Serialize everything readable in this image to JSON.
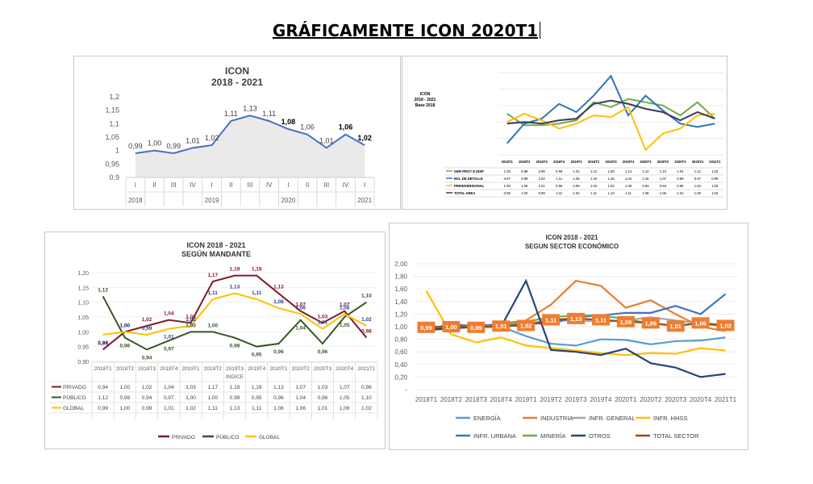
{
  "page": {
    "title": "GRÁFICAMENTE ICON 2020T1"
  },
  "chart_data": [
    {
      "id": "p1",
      "type": "line",
      "title": "ICON",
      "subtitle": "2018 - 2021",
      "xlabel": "",
      "ylabel": "",
      "ylim": [
        0.9,
        1.2
      ],
      "yticks": [
        "0,9",
        "0,95",
        "1",
        "1,05",
        "1,1",
        "1,15",
        "1,2"
      ],
      "categories": [
        "I",
        "II",
        "III",
        "IV",
        "I",
        "II",
        "III",
        "IV",
        "I",
        "II",
        "III",
        "IV",
        "I"
      ],
      "years": [
        "2018",
        "2019",
        "2020",
        "2021"
      ],
      "values": [
        0.99,
        1.0,
        0.99,
        1.01,
        1.02,
        1.11,
        1.13,
        1.11,
        1.08,
        1.06,
        1.01,
        1.06,
        1.02
      ],
      "labels": [
        "0,99",
        "1,00",
        "0,99",
        "1,01",
        "1,02",
        "1,11",
        "1,13",
        "1,11",
        "1,08",
        "1,06",
        "1,01",
        "1,06",
        "1,02"
      ],
      "bold_labels": [
        8,
        11,
        12
      ],
      "color": "#4472c4",
      "area_color": "#d9d9d9"
    },
    {
      "id": "p2",
      "type": "line",
      "title": "ICON",
      "subtitle": "2018 - 2021",
      "subtitle2": "Base 2018",
      "ylim": [
        0.8,
        1.3
      ],
      "categories": [
        "2018T1",
        "2018T2",
        "2018T3",
        "2018T4",
        "2019T1",
        "2019T2",
        "2019T3",
        "2019T4",
        "2020T1",
        "2020T2",
        "2020T3",
        "2020T4",
        "2021T1"
      ],
      "series": [
        {
          "name": "GER PROY E INSP",
          "color": "#70ad47",
          "values": [
            1.05,
            0.98,
            0.98,
            0.99,
            1.01,
            1.12,
            1.09,
            1.14,
            1.12,
            1.1,
            1.04,
            1.12,
            1.02
          ],
          "labels": [
            "1.05",
            "0.98",
            "0.98",
            "0.99",
            "1.01",
            "1.12",
            "1.09",
            "1.14",
            "1.12",
            "1.10",
            "1.04",
            "1.12",
            "1.02"
          ]
        },
        {
          "name": "ING. DE DETALLE",
          "color": "#2e75b6",
          "values": [
            0.87,
            0.99,
            1.02,
            1.11,
            1.06,
            1.16,
            1.28,
            1.04,
            1.16,
            1.07,
            0.99,
            0.97,
            0.99
          ],
          "labels": [
            "0.87",
            "0.99",
            "1.02",
            "1.11",
            "1.06",
            "1.16",
            "1.28",
            "1.04",
            "1.16",
            "1.07",
            "0.99",
            "0.97",
            "0.99"
          ]
        },
        {
          "name": "PREINVERSIONAL",
          "color": "#ffc000",
          "values": [
            1.0,
            1.05,
            1.01,
            0.96,
            0.99,
            1.04,
            1.03,
            1.09,
            0.83,
            0.93,
            0.96,
            1.04,
            1.05
          ],
          "labels": [
            "1.00",
            "1.05",
            "1.01",
            "0.96",
            "0.99",
            "1.04",
            "1.03",
            "1.09",
            "0.83",
            "0.93",
            "0.96",
            "1.04",
            "1.05"
          ]
        },
        {
          "name": "TOTAL AREA",
          "color": "#3a3a5c",
          "values": [
            0.99,
            1.0,
            0.99,
            1.01,
            1.02,
            1.11,
            1.13,
            1.11,
            1.08,
            1.06,
            1.01,
            1.06,
            1.02
          ],
          "labels": [
            "0.99",
            "1.00",
            "0.99",
            "1.01",
            "1.02",
            "1.11",
            "1.13",
            "1.11",
            "1.08",
            "1.06",
            "1.01",
            "1.06",
            "1.02"
          ]
        }
      ]
    },
    {
      "id": "p3",
      "type": "line",
      "title": "ICON 2018 - 2021",
      "subtitle": "SEGÚN MANDANTE",
      "xlabel": "INDICE",
      "ylim": [
        0.9,
        1.2
      ],
      "yticks": [
        "0,90",
        "0,95",
        "1,00",
        "1,05",
        "1,10",
        "1,15",
        "1,20"
      ],
      "categories": [
        "2018T1",
        "2018T2",
        "2018T3",
        "2018T4",
        "2019T1",
        "2019T2",
        "2019T3",
        "2019T4",
        "2020T1",
        "2020T2",
        "2020T3",
        "2020T4",
        "2021T1"
      ],
      "series": [
        {
          "name": "PRIVADO",
          "color": "#7b1e2b",
          "values": [
            0.94,
            1.0,
            1.02,
            1.04,
            1.03,
            1.17,
            1.19,
            1.19,
            1.13,
            1.07,
            1.03,
            1.07,
            0.98
          ],
          "labels": [
            "0,94",
            "1,00",
            "1,02",
            "1,04",
            "1,03",
            "1,17",
            "1,19",
            "1,19",
            "1,13",
            "1,07",
            "1,03",
            "1,07",
            "0,98"
          ]
        },
        {
          "name": "PÚBLICO",
          "color": "#375623",
          "values": [
            1.12,
            0.98,
            0.94,
            0.97,
            1.0,
            1.0,
            0.98,
            0.95,
            0.96,
            1.04,
            0.96,
            1.05,
            1.1
          ],
          "labels": [
            "1,12",
            "0,98",
            "0,94",
            "0,97",
            "1,00",
            "1,00",
            "0,98",
            "0,95",
            "0,96",
            "1,04",
            "0,96",
            "1,05",
            "1,10"
          ]
        },
        {
          "name": "GLOBAL",
          "color": "#ffc000",
          "values": [
            0.99,
            1.0,
            0.99,
            1.01,
            1.02,
            1.11,
            1.13,
            1.11,
            1.08,
            1.06,
            1.01,
            1.06,
            1.02
          ],
          "labels": [
            "0,99",
            "1,00",
            "0,99",
            "1,01",
            "1,02",
            "1,11",
            "1,13",
            "1,11",
            "1,08",
            "1,06",
            "1,01",
            "1,06",
            "1,02"
          ]
        }
      ]
    },
    {
      "id": "p4",
      "type": "line",
      "title": "ICON 2018 - 2021",
      "subtitle": "SEGUN SECTOR ECONÓMICO",
      "ylim": [
        0,
        2.0
      ],
      "yticks": [
        "-",
        "0,20",
        "0,40",
        "0,60",
        "0,80",
        "1,00",
        "1,20",
        "1,40",
        "1,60",
        "1,80",
        "2,00"
      ],
      "categories": [
        "2018T1",
        "2018T2",
        "2018T3",
        "2018T4",
        "2019T1",
        "2019T2",
        "2019T3",
        "2019T4",
        "2020T1",
        "2020T2",
        "2020T3",
        "2020T4",
        "2021T1"
      ],
      "series": [
        {
          "name": "ENERGÍA",
          "color": "#5b9bd5",
          "values": [
            0.95,
            1.05,
            1.0,
            1.0,
            0.85,
            0.73,
            0.7,
            0.8,
            0.79,
            0.72,
            0.77,
            0.78,
            0.83
          ]
        },
        {
          "name": "INDUSTRIA",
          "color": "#ed7d31",
          "values": [
            1.0,
            1.0,
            1.0,
            1.05,
            1.1,
            1.35,
            1.73,
            1.65,
            1.3,
            1.42,
            1.2,
            1.0,
            0.93
          ]
        },
        {
          "name": "INFR. GENERAL",
          "color": "#a5a5a5",
          "values": [
            1.0,
            1.0,
            1.0,
            1.0,
            1.05,
            1.1,
            1.1,
            1.08,
            1.1,
            1.15,
            1.1,
            1.05,
            1.0
          ]
        },
        {
          "name": "INFR. HHSS",
          "color": "#ffc000",
          "values": [
            1.57,
            0.88,
            0.75,
            0.83,
            0.7,
            0.66,
            0.62,
            0.58,
            0.55,
            0.58,
            0.57,
            0.66,
            0.62
          ]
        },
        {
          "name": "INFR. URBANA",
          "color": "#4472c4",
          "values": [
            0.92,
            1.02,
            1.02,
            1.03,
            1.05,
            1.05,
            1.15,
            1.18,
            1.22,
            1.22,
            1.33,
            1.2,
            1.52
          ]
        },
        {
          "name": "MINERÍA",
          "color": "#70ad47",
          "values": [
            0.98,
            1.0,
            1.0,
            1.02,
            1.08,
            1.15,
            1.18,
            1.18,
            1.12,
            1.05,
            1.02,
            1.05,
            1.02
          ]
        },
        {
          "name": "OTROS",
          "color": "#264478",
          "values": [
            0.95,
            0.97,
            1.0,
            1.0,
            1.73,
            0.63,
            0.6,
            0.55,
            0.65,
            0.42,
            0.35,
            0.2,
            0.25
          ]
        },
        {
          "name": "TOTAL SECTOR",
          "color": "#9e480e",
          "values": [
            0.99,
            1.0,
            0.99,
            1.01,
            1.02,
            1.11,
            1.13,
            1.11,
            1.08,
            1.06,
            1.01,
            1.06,
            1.02
          ]
        }
      ],
      "box_labels": [
        "0,99",
        "1,00",
        "0,99",
        "1,01",
        "1,02",
        "1,11",
        "1,13",
        "1,11",
        "1,08",
        "1,06",
        "1,01",
        "1,06",
        "1,02"
      ],
      "box_color": "#ed7d31"
    }
  ]
}
